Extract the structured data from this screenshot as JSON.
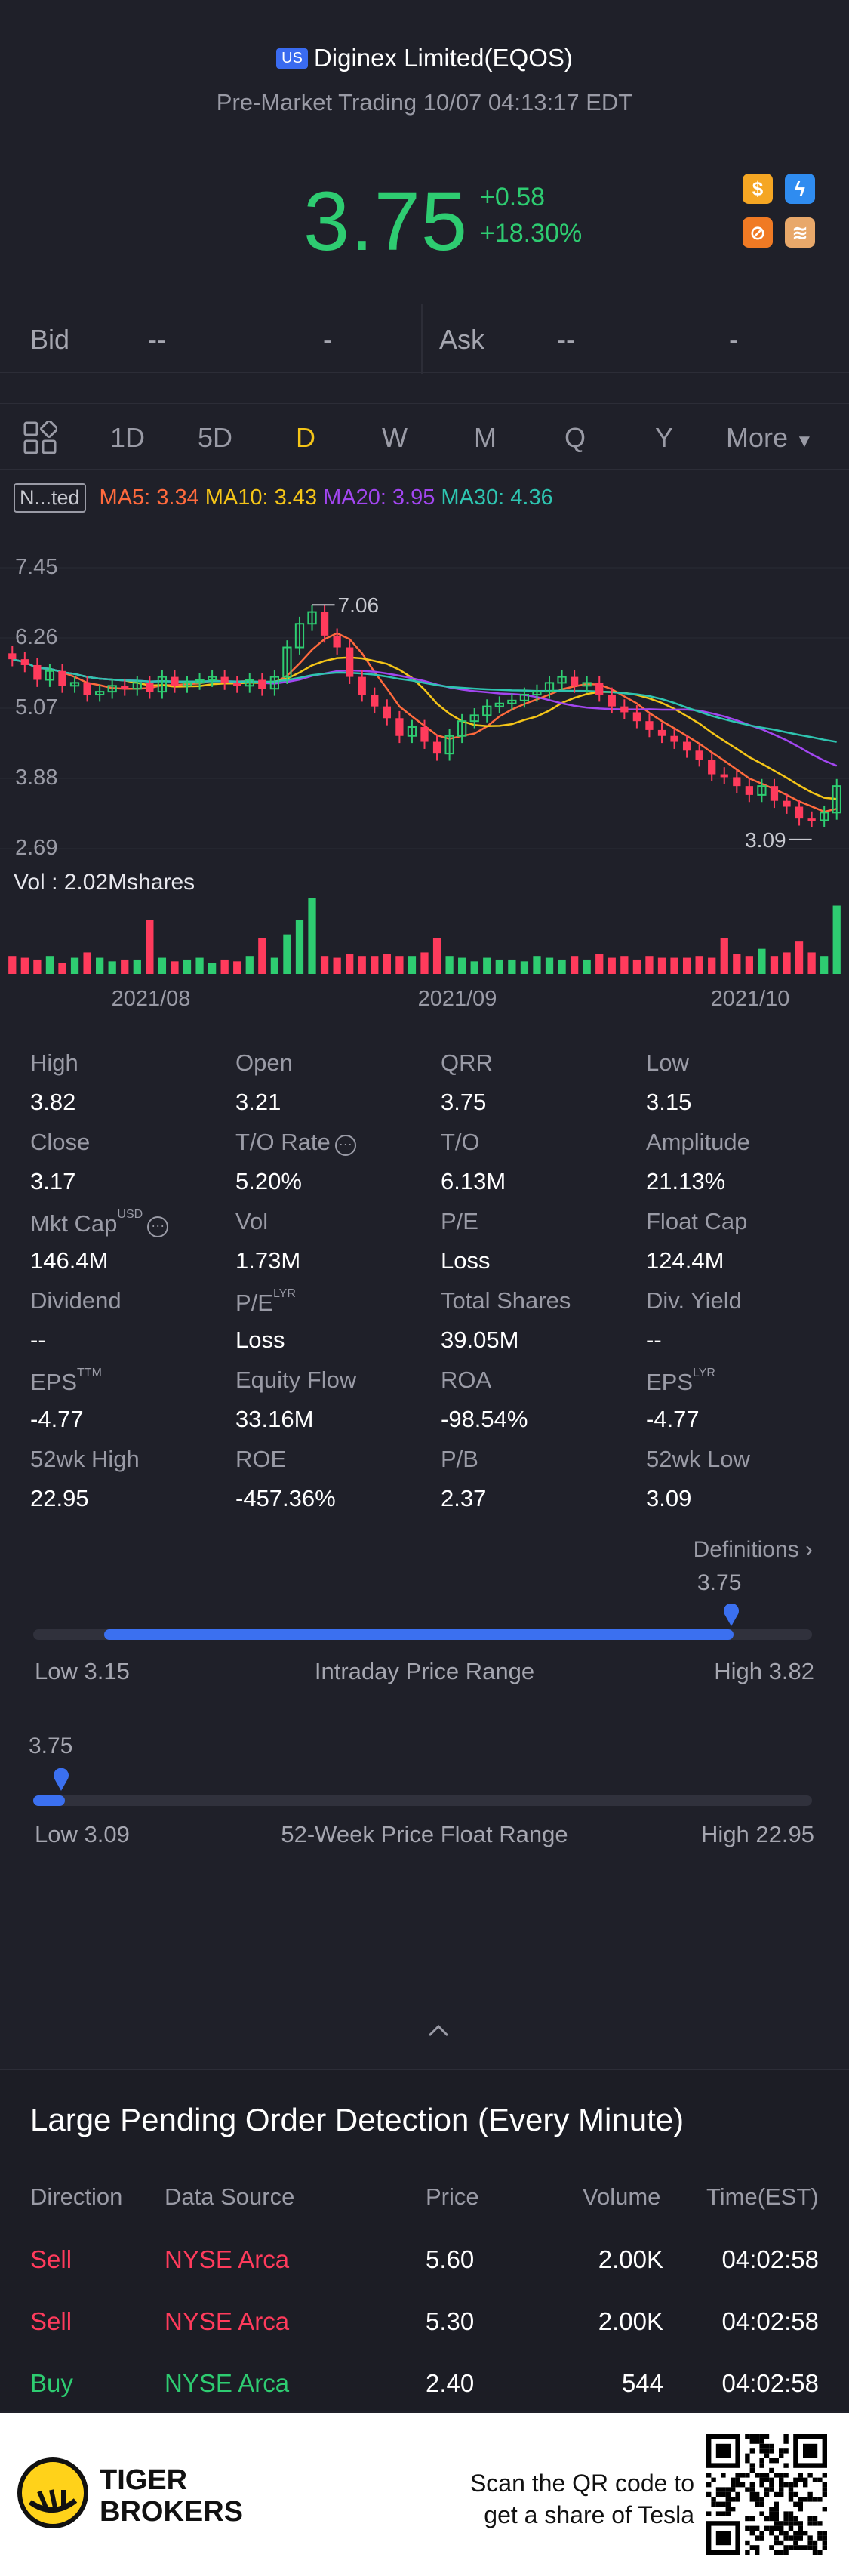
{
  "header": {
    "market_badge": "US",
    "title": "Diginex Limited(EQOS)",
    "subtitle": "Pre-Market Trading 10/07 04:13:17 EDT",
    "price": "3.75",
    "change": "+0.58",
    "change_pct": "+18.30%",
    "icons": [
      "dollar-icon",
      "lightning-icon",
      "no-short-icon",
      "stack-icon"
    ],
    "colors": {
      "up": "#2ecc71",
      "down": "#ff3b5c",
      "accent": "#3b70f0"
    }
  },
  "quote": {
    "bid_label": "Bid",
    "bid_value": "--",
    "bid_size": "-",
    "ask_label": "Ask",
    "ask_value": "--",
    "ask_size": "-"
  },
  "tabs": {
    "items": [
      "1D",
      "5D",
      "D",
      "W",
      "M",
      "Q",
      "Y",
      "More"
    ],
    "active": "D"
  },
  "ma_legend": {
    "selector": "N...ted",
    "ma5": "MA5: 3.34",
    "ma10": "MA10: 3.43",
    "ma20": "MA20: 3.95",
    "ma30": "MA30: 4.36",
    "colors": {
      "ma5": "#ff6a3d",
      "ma10": "#f5c518",
      "ma20": "#a246f0",
      "ma30": "#2ec4b0"
    }
  },
  "chart_data": {
    "type": "candlestick",
    "y_ticks": [
      "7.45",
      "6.26",
      "5.07",
      "3.88",
      "2.69"
    ],
    "ylim": [
      2.69,
      7.45
    ],
    "x_labels": [
      "2021/08",
      "2021/09",
      "2021/10"
    ],
    "high_annotation": "7.06",
    "low_annotation": "3.09",
    "volume_label": "Vol",
    "volume_value": ": 2.02Mshares",
    "closes": [
      5.9,
      5.8,
      5.55,
      5.7,
      5.45,
      5.5,
      5.3,
      5.35,
      5.45,
      5.4,
      5.5,
      5.35,
      5.6,
      5.45,
      5.5,
      5.55,
      5.6,
      5.5,
      5.45,
      5.55,
      5.4,
      5.6,
      6.1,
      6.5,
      6.7,
      6.3,
      6.1,
      5.6,
      5.3,
      5.1,
      4.9,
      4.6,
      4.75,
      4.5,
      4.3,
      4.6,
      4.85,
      4.95,
      5.1,
      5.15,
      5.2,
      5.3,
      5.35,
      5.5,
      5.6,
      5.45,
      5.5,
      5.3,
      5.1,
      5.0,
      4.85,
      4.7,
      4.6,
      4.5,
      4.35,
      4.2,
      3.95,
      3.9,
      3.75,
      3.6,
      3.75,
      3.5,
      3.4,
      3.2,
      3.17,
      3.3,
      3.75
    ],
    "volumes": [
      0.5,
      0.45,
      0.4,
      0.5,
      0.3,
      0.45,
      0.6,
      0.45,
      0.35,
      0.4,
      0.4,
      1.5,
      0.45,
      0.35,
      0.4,
      0.45,
      0.3,
      0.4,
      0.35,
      0.5,
      1.0,
      0.45,
      1.1,
      1.5,
      2.1,
      0.5,
      0.45,
      0.55,
      0.5,
      0.5,
      0.55,
      0.5,
      0.5,
      0.6,
      1.0,
      0.5,
      0.45,
      0.35,
      0.45,
      0.4,
      0.4,
      0.35,
      0.5,
      0.45,
      0.4,
      0.5,
      0.4,
      0.55,
      0.45,
      0.5,
      0.4,
      0.5,
      0.45,
      0.45,
      0.45,
      0.5,
      0.45,
      1.0,
      0.55,
      0.5,
      0.7,
      0.5,
      0.6,
      0.9,
      0.6,
      0.5,
      1.9
    ]
  },
  "stats": [
    {
      "label": "High",
      "value": "3.82"
    },
    {
      "label": "Open",
      "value": "3.21"
    },
    {
      "label": "QRR",
      "value": "3.75"
    },
    {
      "label": "Low",
      "value": "3.15"
    },
    {
      "label": "Close",
      "value": "3.17"
    },
    {
      "label": "T/O Rate",
      "value": "5.20%"
    },
    {
      "label": "T/O",
      "value": "6.13M"
    },
    {
      "label": "Amplitude",
      "value": "21.13%"
    },
    {
      "label": "Mkt Cap",
      "value": "146.4M",
      "sup": "USD"
    },
    {
      "label": "Vol",
      "value": "1.73M"
    },
    {
      "label": "P/E",
      "value": "Loss"
    },
    {
      "label": "Float Cap",
      "value": "124.4M"
    },
    {
      "label": "Dividend",
      "value": "--"
    },
    {
      "label": "P/E",
      "value": "Loss",
      "sup": "LYR"
    },
    {
      "label": "Total Shares",
      "value": "39.05M"
    },
    {
      "label": "Div. Yield",
      "value": "--"
    },
    {
      "label": "EPS",
      "value": "-4.77",
      "sup": "TTM"
    },
    {
      "label": "Equity Flow",
      "value": "33.16M"
    },
    {
      "label": "ROA",
      "value": "-98.54%"
    },
    {
      "label": "EPS",
      "value": "-4.77",
      "sup": "LYR"
    },
    {
      "label": "52wk High",
      "value": "22.95"
    },
    {
      "label": "ROE",
      "value": "-457.36%"
    },
    {
      "label": "P/B",
      "value": "2.37"
    },
    {
      "label": "52wk Low",
      "value": "3.09"
    }
  ],
  "definitions_link": "Definitions",
  "intraday_range": {
    "current": "3.75",
    "low": "Low 3.15",
    "high": "High 3.82",
    "label": "Intraday Price Range",
    "fill_from_fraction": 0.1,
    "marker_fraction": 0.9
  },
  "week52_range": {
    "current": "3.75",
    "low": "Low 3.09",
    "high": "High 22.95",
    "label": "52-Week Price Float Range",
    "marker_fraction": 0.033
  },
  "orders": {
    "title": "Large Pending Order Detection (Every Minute)",
    "headers": [
      "Direction",
      "Data Source",
      "Price",
      "Volume",
      "Time(EST)"
    ],
    "rows": [
      {
        "direction": "Sell",
        "source": "NYSE Arca",
        "price": "5.60",
        "volume": "2.00K",
        "time": "04:02:58"
      },
      {
        "direction": "Sell",
        "source": "NYSE Arca",
        "price": "5.30",
        "volume": "2.00K",
        "time": "04:02:58"
      },
      {
        "direction": "Buy",
        "source": "NYSE Arca",
        "price": "2.40",
        "volume": "544",
        "time": "04:02:58"
      }
    ]
  },
  "footer": {
    "brand_line1": "TIGER",
    "brand_line2": "BROKERS",
    "scan_line1": "Scan the QR code to",
    "scan_line2": "get a share of Tesla"
  }
}
